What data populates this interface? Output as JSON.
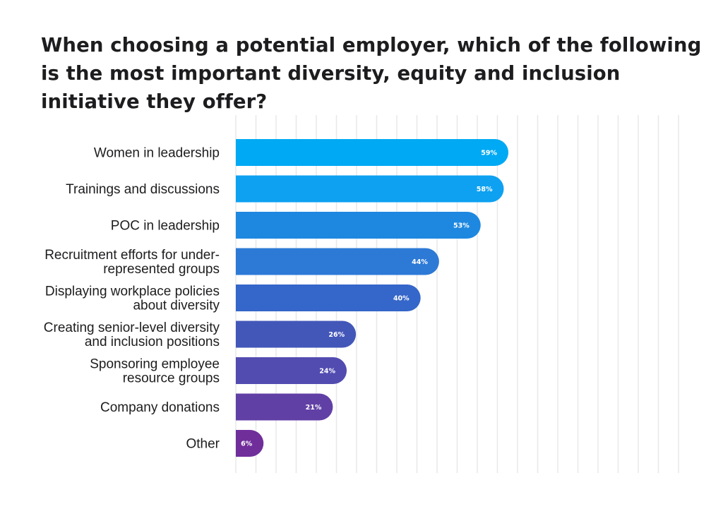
{
  "chart_data": {
    "type": "bar",
    "orientation": "horizontal",
    "title": "When choosing a potential employer, which of the following is the most important diversity, equity and inclusion initiative they offer?",
    "categories": [
      "Women in leadership",
      "Trainings and discussions",
      "POC in leadership",
      "Recruitment efforts for under-represented groups",
      "Displaying workplace policies about diversity",
      "Creating senior-level diversity and inclusion positions",
      "Sponsoring employee resource groups",
      "Company donations",
      "Other"
    ],
    "category_lines": [
      [
        "Women in leadership"
      ],
      [
        "Trainings and discussions"
      ],
      [
        "POC in leadership"
      ],
      [
        "Recruitment efforts for under-",
        "represented groups"
      ],
      [
        "Displaying workplace policies",
        "about diversity"
      ],
      [
        "Creating senior-level diversity",
        "and inclusion positions"
      ],
      [
        "Sponsoring employee",
        "resource groups"
      ],
      [
        "Company donations"
      ],
      [
        "Other"
      ]
    ],
    "values": [
      59,
      58,
      53,
      44,
      40,
      26,
      24,
      21,
      6
    ],
    "value_labels": [
      "59%",
      "58%",
      "53%",
      "44%",
      "40%",
      "26%",
      "24%",
      "21%",
      "6%"
    ],
    "colors": [
      "#00a9f4",
      "#0ea1f1",
      "#1e88e0",
      "#2d79d6",
      "#3566c9",
      "#4357b9",
      "#524cb1",
      "#6140a6",
      "#702e9b"
    ],
    "gridline_color": "#e8e8e8",
    "grid": true,
    "xlim": [
      0,
      99.5
    ],
    "xlabel": "",
    "ylabel": "",
    "legend": "none"
  }
}
